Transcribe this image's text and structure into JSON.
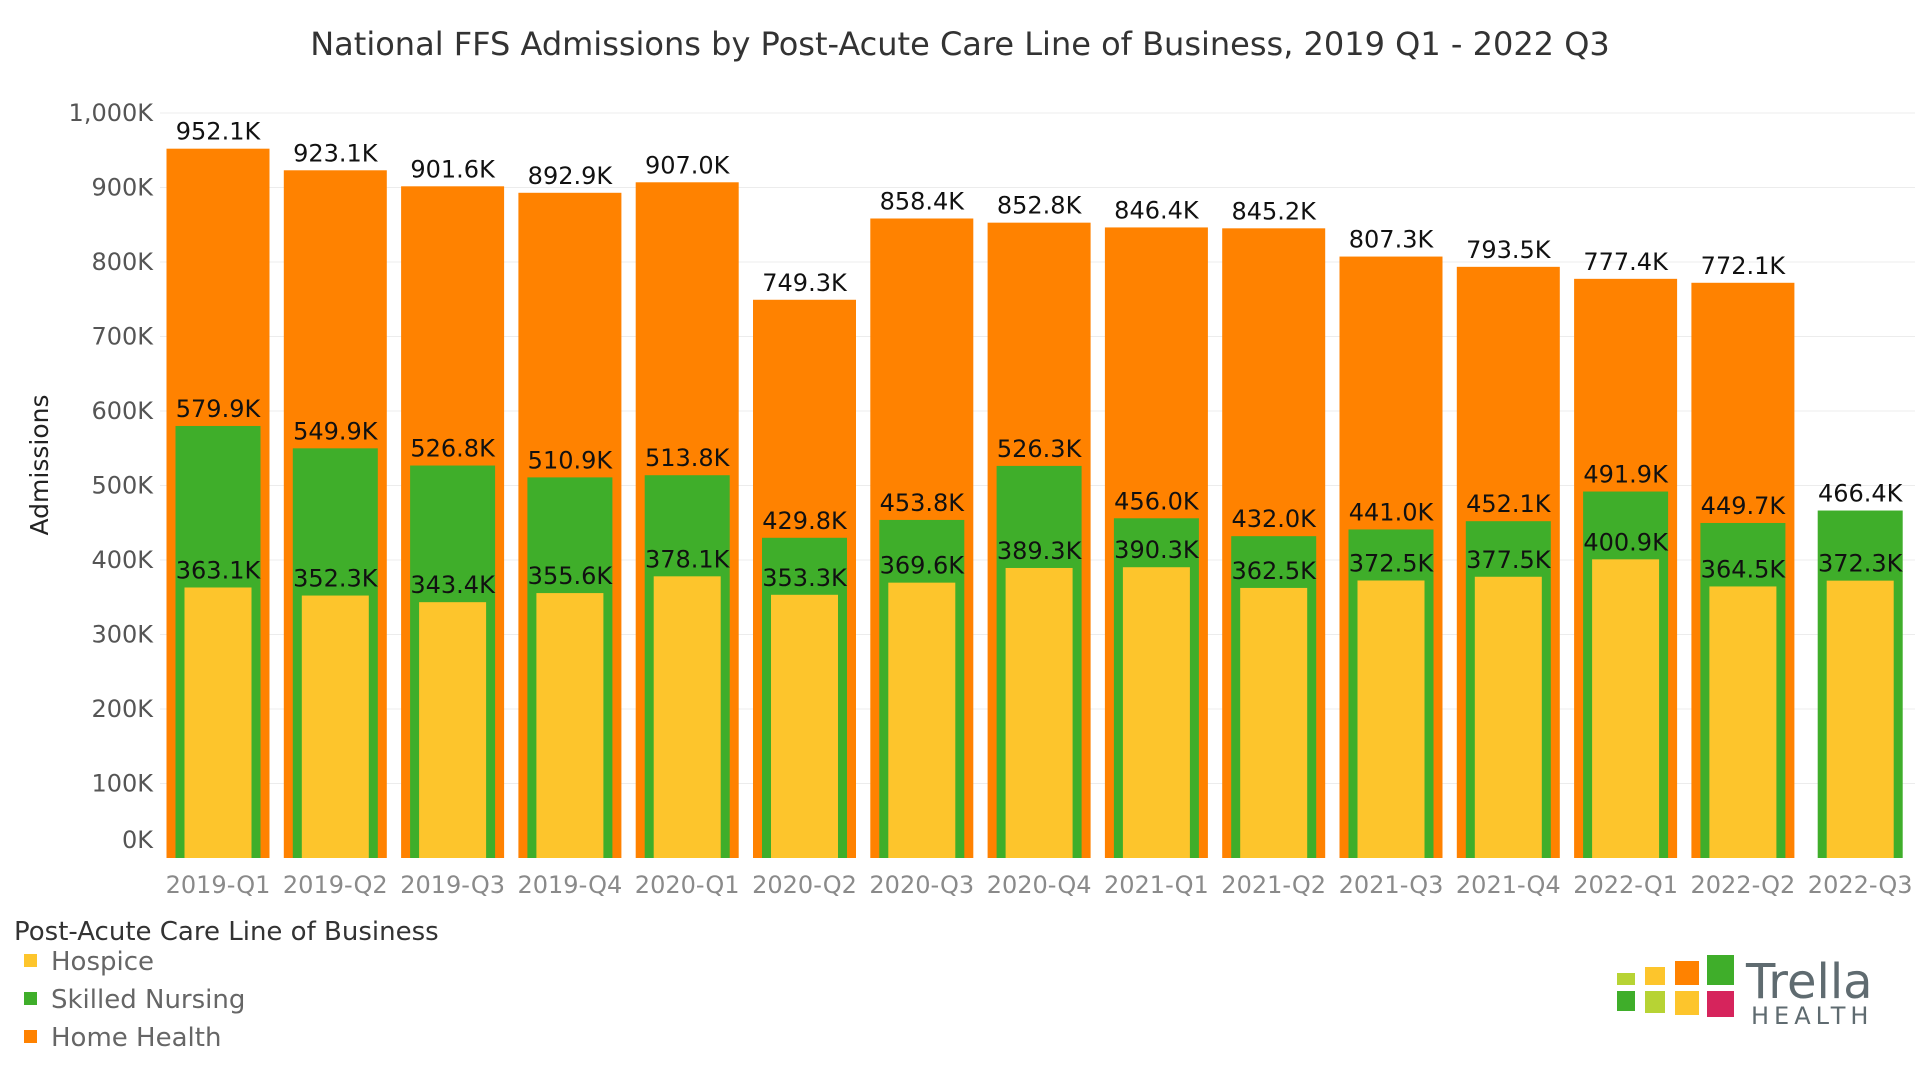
{
  "colors": {
    "hospice": "#fdc52c",
    "skilled_nursing": "#3fae2a",
    "home_health": "#ff8200",
    "grid": "#ececec",
    "logo_squares": [
      "#b7d334",
      "#fdc52c",
      "#ff8200",
      "#3fae2a",
      "#3fae2a",
      "#b7d334",
      "#fdc52c",
      "#d6245c"
    ]
  },
  "chart_data": {
    "type": "bar",
    "stacked": false,
    "overlapped": true,
    "title": "National FFS Admissions by Post-Acute Care Line of Business, 2019 Q1 - 2022 Q3",
    "xlabel": "",
    "ylabel": "Admissions",
    "ylim": [
      0,
      1000
    ],
    "y_unit": "K",
    "yticks": [
      0,
      100,
      200,
      300,
      400,
      500,
      600,
      700,
      800,
      900,
      1000
    ],
    "ytick_labels": [
      "0K",
      "100K",
      "200K",
      "300K",
      "400K",
      "500K",
      "600K",
      "700K",
      "800K",
      "900K",
      "1,000K"
    ],
    "grid": true,
    "categories": [
      "2019-Q1",
      "2019-Q2",
      "2019-Q3",
      "2019-Q4",
      "2020-Q1",
      "2020-Q2",
      "2020-Q3",
      "2020-Q4",
      "2021-Q1",
      "2021-Q2",
      "2021-Q3",
      "2021-Q4",
      "2022-Q1",
      "2022-Q2",
      "2022-Q3"
    ],
    "series": [
      {
        "name": "Home Health",
        "key": "home_health",
        "values": [
          952.1,
          923.1,
          901.6,
          892.9,
          907.0,
          749.3,
          858.4,
          852.8,
          846.4,
          845.2,
          807.3,
          793.5,
          777.4,
          772.1,
          null
        ],
        "labels": [
          "952.1K",
          "923.1K",
          "901.6K",
          "892.9K",
          "907.0K",
          "749.3K",
          "858.4K",
          "852.8K",
          "846.4K",
          "845.2K",
          "807.3K",
          "793.5K",
          "777.4K",
          "772.1K",
          ""
        ]
      },
      {
        "name": "Skilled Nursing",
        "key": "skilled_nursing",
        "values": [
          579.9,
          549.9,
          526.8,
          510.9,
          513.8,
          429.8,
          453.8,
          526.3,
          456.0,
          432.0,
          441.0,
          452.1,
          491.9,
          449.7,
          466.4
        ],
        "labels": [
          "579.9K",
          "549.9K",
          "526.8K",
          "510.9K",
          "513.8K",
          "429.8K",
          "453.8K",
          "526.3K",
          "456.0K",
          "432.0K",
          "441.0K",
          "452.1K",
          "491.9K",
          "449.7K",
          "466.4K"
        ]
      },
      {
        "name": "Hospice",
        "key": "hospice",
        "values": [
          363.1,
          352.3,
          343.4,
          355.6,
          378.1,
          353.3,
          369.6,
          389.3,
          390.3,
          362.5,
          372.5,
          377.5,
          400.9,
          364.5,
          372.3
        ],
        "labels": [
          "363.1K",
          "352.3K",
          "343.4K",
          "355.6K",
          "378.1K",
          "353.3K",
          "369.6K",
          "389.3K",
          "390.3K",
          "362.5K",
          "372.5K",
          "377.5K",
          "400.9K",
          "364.5K",
          "372.3K"
        ]
      }
    ],
    "legend": {
      "title": "Post-Acute Care Line of Business",
      "position": "bottom-left",
      "entries": [
        {
          "label": "Hospice",
          "key": "hospice"
        },
        {
          "label": "Skilled Nursing",
          "key": "skilled_nursing"
        },
        {
          "label": "Home Health",
          "key": "home_health"
        }
      ]
    }
  },
  "logo": {
    "name": "Trella",
    "subtitle": "HEALTH"
  }
}
